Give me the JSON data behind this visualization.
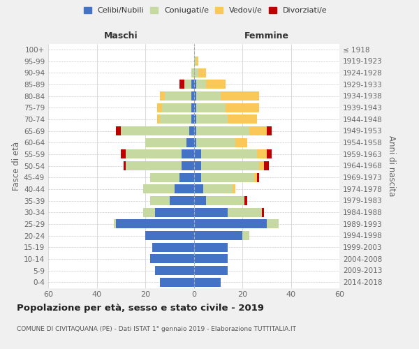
{
  "age_groups": [
    "0-4",
    "5-9",
    "10-14",
    "15-19",
    "20-24",
    "25-29",
    "30-34",
    "35-39",
    "40-44",
    "45-49",
    "50-54",
    "55-59",
    "60-64",
    "65-69",
    "70-74",
    "75-79",
    "80-84",
    "85-89",
    "90-94",
    "95-99",
    "100+"
  ],
  "birth_years": [
    "2014-2018",
    "2009-2013",
    "2004-2008",
    "1999-2003",
    "1994-1998",
    "1989-1993",
    "1984-1988",
    "1979-1983",
    "1974-1978",
    "1969-1973",
    "1964-1968",
    "1959-1963",
    "1954-1958",
    "1949-1953",
    "1944-1948",
    "1939-1943",
    "1934-1938",
    "1929-1933",
    "1924-1928",
    "1919-1923",
    "≤ 1918"
  ],
  "males": {
    "celibi": [
      14,
      16,
      18,
      17,
      20,
      32,
      16,
      10,
      8,
      6,
      5,
      5,
      3,
      2,
      1,
      1,
      1,
      1,
      0,
      0,
      0
    ],
    "coniugati": [
      0,
      0,
      0,
      0,
      0,
      1,
      5,
      8,
      13,
      12,
      23,
      23,
      17,
      28,
      13,
      12,
      11,
      3,
      1,
      0,
      0
    ],
    "vedovi": [
      0,
      0,
      0,
      0,
      0,
      0,
      0,
      0,
      0,
      0,
      0,
      0,
      0,
      0,
      1,
      2,
      2,
      0,
      0,
      0,
      0
    ],
    "divorziati": [
      0,
      0,
      0,
      0,
      0,
      0,
      0,
      0,
      0,
      0,
      1,
      2,
      0,
      2,
      0,
      0,
      0,
      2,
      0,
      0,
      0
    ]
  },
  "females": {
    "nubili": [
      11,
      14,
      14,
      14,
      20,
      30,
      14,
      5,
      4,
      3,
      3,
      3,
      1,
      1,
      1,
      1,
      1,
      1,
      0,
      0,
      0
    ],
    "coniugate": [
      0,
      0,
      0,
      0,
      3,
      5,
      14,
      16,
      12,
      22,
      24,
      23,
      16,
      22,
      13,
      12,
      10,
      4,
      2,
      1,
      0
    ],
    "vedove": [
      0,
      0,
      0,
      0,
      0,
      0,
      0,
      0,
      1,
      1,
      2,
      4,
      5,
      7,
      12,
      14,
      16,
      8,
      3,
      1,
      0
    ],
    "divorziate": [
      0,
      0,
      0,
      0,
      0,
      0,
      1,
      1,
      0,
      1,
      2,
      2,
      0,
      2,
      0,
      0,
      0,
      0,
      0,
      0,
      0
    ]
  },
  "color_celibi": "#4472c4",
  "color_coniugati": "#c5d9a0",
  "color_vedovi": "#fac858",
  "color_divorziati": "#c00000",
  "title": "Popolazione per età, sesso e stato civile - 2019",
  "subtitle": "COMUNE DI CIVITAQUANA (PE) - Dati ISTAT 1° gennaio 2019 - Elaborazione TUTTITALIA.IT",
  "xlabel_left": "Maschi",
  "xlabel_right": "Femmine",
  "ylabel_left": "Fasce di età",
  "ylabel_right": "Anni di nascita",
  "xlim": 60,
  "bg_color": "#f0f0f0",
  "plot_bg": "#ffffff",
  "grid_color": "#cccccc"
}
